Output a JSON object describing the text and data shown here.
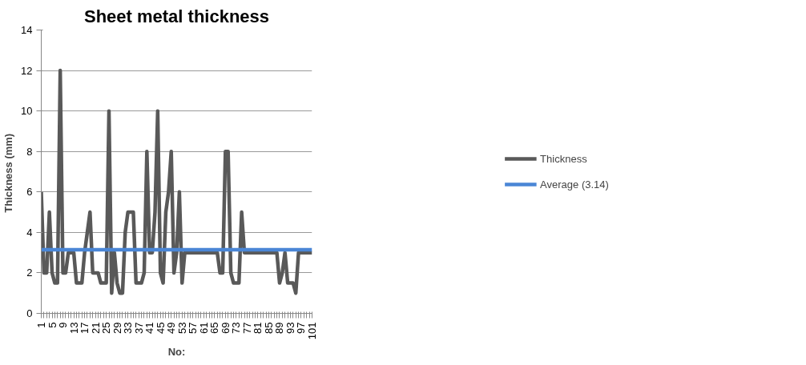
{
  "chart_data": {
    "type": "line",
    "title": "Sheet metal thickness",
    "xlabel": "No:",
    "ylabel": "Thickness  (mm)",
    "x": [
      1,
      2,
      3,
      4,
      5,
      6,
      7,
      8,
      9,
      10,
      11,
      12,
      13,
      14,
      15,
      16,
      17,
      18,
      19,
      20,
      21,
      22,
      23,
      24,
      25,
      26,
      27,
      28,
      29,
      30,
      31,
      32,
      33,
      34,
      35,
      36,
      37,
      38,
      39,
      40,
      41,
      42,
      43,
      44,
      45,
      46,
      47,
      48,
      49,
      50,
      51,
      52,
      53,
      54,
      55,
      56,
      57,
      58,
      59,
      60,
      61,
      62,
      63,
      64,
      65,
      66,
      67,
      68,
      69,
      70,
      71,
      72,
      73,
      74,
      75,
      76,
      77,
      78,
      79,
      80,
      81,
      82,
      83,
      84,
      85,
      86,
      87,
      88,
      89,
      90,
      91,
      92,
      93,
      94,
      95,
      96,
      97,
      98,
      99,
      100,
      101
    ],
    "series": [
      {
        "name": "Thickness",
        "color": "#595959",
        "values": [
          6,
          2,
          2,
          5,
          2,
          1.5,
          1.5,
          12,
          2,
          2,
          3,
          3,
          3,
          1.5,
          1.5,
          1.5,
          3,
          4,
          5,
          2,
          2,
          2,
          1.5,
          1.5,
          1.5,
          10,
          1,
          3,
          1.5,
          1,
          1,
          4,
          5,
          5,
          5,
          1.5,
          1.5,
          1.5,
          2,
          8,
          3,
          3,
          5,
          10,
          2,
          1.5,
          5,
          6,
          8,
          2,
          3,
          6,
          1.5,
          3,
          3,
          3,
          3,
          3,
          3,
          3,
          3,
          3,
          3,
          3,
          3,
          3,
          2,
          2,
          8,
          8,
          2,
          1.5,
          1.5,
          1.5,
          5,
          3,
          3,
          3,
          3,
          3,
          3,
          3,
          3,
          3,
          3,
          3,
          3,
          3,
          1.5,
          2,
          3,
          1.5,
          1.5,
          1.5,
          1,
          3,
          3,
          3,
          3,
          3,
          3
        ]
      }
    ],
    "ref_lines": [
      {
        "axis": "y",
        "value": 3.14,
        "label": "Average (3.14)",
        "color": "#4a86d6"
      }
    ],
    "xlim": [
      1,
      101
    ],
    "xticks": [
      1,
      {
        "value": 2,
        "label": null
      },
      {
        "value": 3,
        "label": null
      },
      {
        "value": 4,
        "label": null
      },
      5,
      {
        "value": 6,
        "label": null
      },
      {
        "value": 7,
        "label": null
      },
      {
        "value": 8,
        "label": null
      },
      9,
      {
        "value": 10,
        "label": null
      },
      {
        "value": 11,
        "label": null
      },
      {
        "value": 12,
        "label": null
      },
      13,
      {
        "value": 14,
        "label": null
      },
      {
        "value": 15,
        "label": null
      },
      {
        "value": 16,
        "label": null
      },
      17,
      {
        "value": 18,
        "label": null
      },
      {
        "value": 19,
        "label": null
      },
      {
        "value": 20,
        "label": null
      },
      21,
      {
        "value": 22,
        "label": null
      },
      {
        "value": 23,
        "label": null
      },
      {
        "value": 24,
        "label": null
      },
      25,
      {
        "value": 26,
        "label": null
      },
      {
        "value": 27,
        "label": null
      },
      {
        "value": 28,
        "label": null
      },
      29,
      {
        "value": 30,
        "label": null
      },
      {
        "value": 31,
        "label": null
      },
      {
        "value": 32,
        "label": null
      },
      33,
      {
        "value": 34,
        "label": null
      },
      {
        "value": 35,
        "label": null
      },
      {
        "value": 36,
        "label": null
      },
      37,
      {
        "value": 38,
        "label": null
      },
      {
        "value": 39,
        "label": null
      },
      {
        "value": 40,
        "label": null
      },
      41,
      {
        "value": 42,
        "label": null
      },
      {
        "value": 43,
        "label": null
      },
      {
        "value": 44,
        "label": null
      },
      45,
      {
        "value": 46,
        "label": null
      },
      {
        "value": 47,
        "label": null
      },
      {
        "value": 48,
        "label": null
      },
      49,
      {
        "value": 50,
        "label": null
      },
      {
        "value": 51,
        "label": null
      },
      {
        "value": 52,
        "label": null
      },
      53,
      {
        "value": 54,
        "label": null
      },
      {
        "value": 55,
        "label": null
      },
      {
        "value": 56,
        "label": null
      },
      57,
      {
        "value": 58,
        "label": null
      },
      {
        "value": 59,
        "label": null
      },
      {
        "value": 60,
        "label": null
      },
      61,
      {
        "value": 62,
        "label": null
      },
      {
        "value": 63,
        "label": null
      },
      {
        "value": 64,
        "label": null
      },
      65,
      {
        "value": 66,
        "label": null
      },
      {
        "value": 67,
        "label": null
      },
      {
        "value": 68,
        "label": null
      },
      69,
      {
        "value": 70,
        "label": null
      },
      {
        "value": 71,
        "label": null
      },
      {
        "value": 72,
        "label": null
      },
      73,
      {
        "value": 74,
        "label": null
      },
      {
        "value": 75,
        "label": null
      },
      {
        "value": 76,
        "label": null
      },
      77,
      {
        "value": 78,
        "label": null
      },
      {
        "value": 79,
        "label": null
      },
      {
        "value": 80,
        "label": null
      },
      81,
      {
        "value": 82,
        "label": null
      },
      {
        "value": 83,
        "label": null
      },
      {
        "value": 84,
        "label": null
      },
      85,
      {
        "value": 86,
        "label": null
      },
      {
        "value": 87,
        "label": null
      },
      {
        "value": 88,
        "label": null
      },
      89,
      {
        "value": 90,
        "label": null
      },
      {
        "value": 91,
        "label": null
      },
      {
        "value": 92,
        "label": null
      },
      93,
      {
        "value": 94,
        "label": null
      },
      {
        "value": 95,
        "label": null
      },
      {
        "value": 96,
        "label": null
      },
      97,
      {
        "value": 98,
        "label": null
      },
      {
        "value": 99,
        "label": null
      },
      {
        "value": 100,
        "label": null
      },
      101
    ],
    "ylim": [
      0,
      14
    ],
    "yticks": [
      0,
      2,
      4,
      6,
      8,
      10,
      12,
      14
    ],
    "grid": "y",
    "legend": "right",
    "marker": "none",
    "line_style": "solid"
  }
}
